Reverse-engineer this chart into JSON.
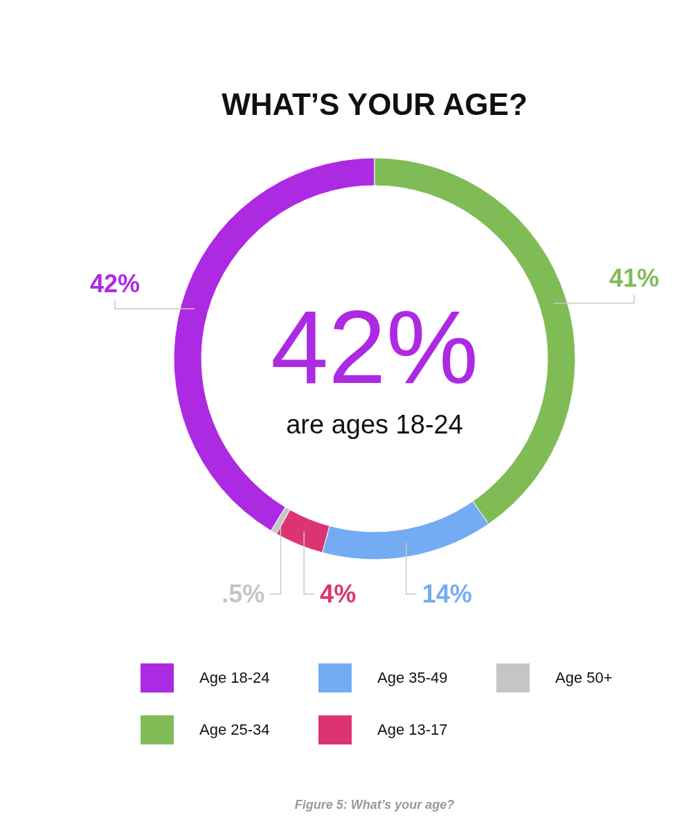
{
  "chart_data": {
    "type": "donut",
    "title": "WHAT’S YOUR AGE?",
    "categories": [
      "Age 18-24",
      "Age 25-34",
      "Age 35-49",
      "Age 13-17",
      "Age 50+"
    ],
    "values": [
      42,
      41,
      14,
      4,
      0.5
    ],
    "colors": [
      "#ad2ae3",
      "#80bc56",
      "#74acf3",
      "#dc3473",
      "#c5c5c7"
    ],
    "value_labels": [
      "42%",
      "41%",
      "14%",
      "4%",
      ".5%"
    ],
    "legend": "bottom",
    "annotations": [
      "42%",
      "are ages 18-24",
      "Figure 5: What’s your age?"
    ]
  }
}
